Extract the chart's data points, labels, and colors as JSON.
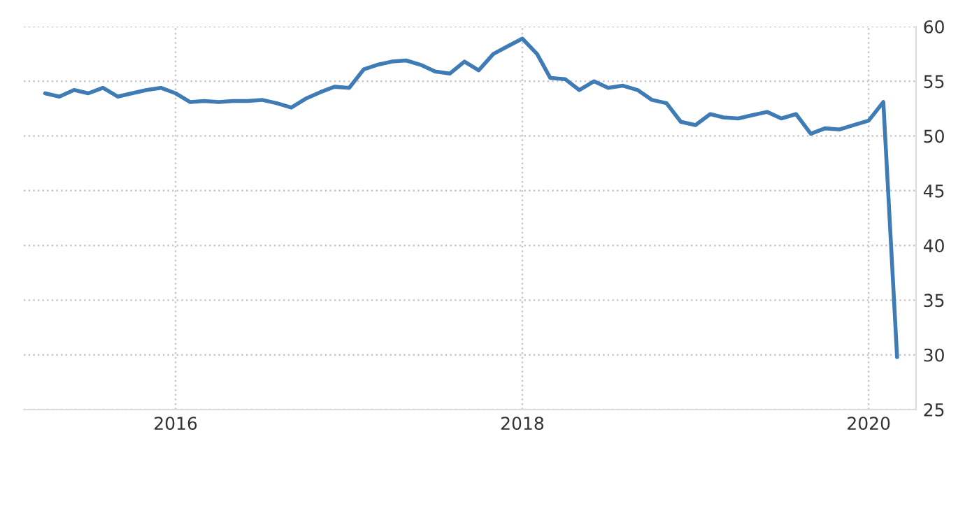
{
  "chart_data": {
    "type": "line",
    "x": [
      "2015-04",
      "2015-05",
      "2015-06",
      "2015-07",
      "2015-08",
      "2015-09",
      "2015-10",
      "2015-11",
      "2015-12",
      "2016-01",
      "2016-02",
      "2016-03",
      "2016-04",
      "2016-05",
      "2016-06",
      "2016-07",
      "2016-08",
      "2016-09",
      "2016-10",
      "2016-11",
      "2016-12",
      "2017-01",
      "2017-02",
      "2017-03",
      "2017-04",
      "2017-05",
      "2017-06",
      "2017-07",
      "2017-08",
      "2017-09",
      "2017-10",
      "2017-11",
      "2017-12",
      "2018-01",
      "2018-02",
      "2018-03",
      "2018-04",
      "2018-05",
      "2018-06",
      "2018-07",
      "2018-08",
      "2018-09",
      "2018-10",
      "2018-11",
      "2018-12",
      "2019-01",
      "2019-02",
      "2019-03",
      "2019-04",
      "2019-05",
      "2019-06",
      "2019-07",
      "2019-08",
      "2019-09",
      "2019-10",
      "2019-11",
      "2019-12",
      "2020-01",
      "2020-02",
      "2020-03"
    ],
    "series": [
      {
        "color": "#3f7bb5",
        "values": [
          53.9,
          53.6,
          54.2,
          53.9,
          54.4,
          53.6,
          53.9,
          54.2,
          54.4,
          53.9,
          53.1,
          53.2,
          53.1,
          53.2,
          53.2,
          53.3,
          53.0,
          52.6,
          53.4,
          54.0,
          54.5,
          54.4,
          56.1,
          56.5,
          56.8,
          56.9,
          56.5,
          55.9,
          55.7,
          56.8,
          56.0,
          57.5,
          58.2,
          58.9,
          57.5,
          55.3,
          55.2,
          54.2,
          55.0,
          54.4,
          54.6,
          54.2,
          53.3,
          53.0,
          51.3,
          51.0,
          52.0,
          51.7,
          51.6,
          51.9,
          52.2,
          51.6,
          52.0,
          50.2,
          50.7,
          50.6,
          51.0,
          51.4,
          53.1,
          29.8
        ]
      }
    ],
    "xlim": [
      "2015-02-15",
      "2020-04-10"
    ],
    "xticks": [
      {
        "value": "2016",
        "label": "2016"
      },
      {
        "value": "2018",
        "label": "2018"
      },
      {
        "value": "2020",
        "label": "2020"
      }
    ],
    "ylim": [
      25,
      60
    ],
    "yticks": [
      25,
      30,
      35,
      40,
      45,
      50,
      55,
      60
    ],
    "grid": true
  }
}
